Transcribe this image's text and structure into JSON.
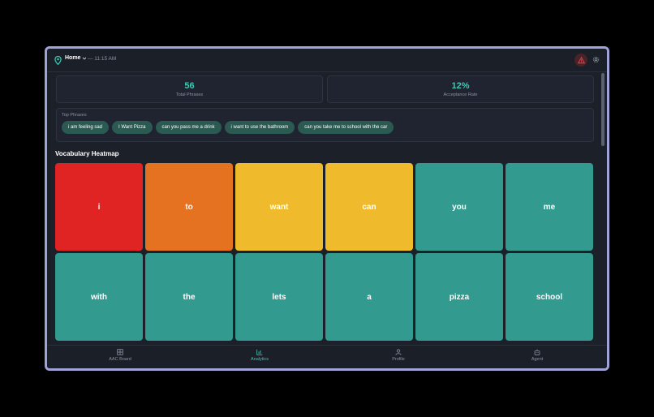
{
  "header": {
    "location": "Home",
    "time": "— 11:15 AM"
  },
  "stats": [
    {
      "value": "56",
      "label": "Total Phrases"
    },
    {
      "value": "12%",
      "label": "Acceptance Rate"
    }
  ],
  "top_phrases": {
    "title": "Top Phrases",
    "items": [
      "i am feeling sad",
      "I Want Pizza",
      "can you pass me a drink",
      "i want to use the bathroom",
      "can you take me to school with the car"
    ]
  },
  "heatmap": {
    "title": "Vocabulary Heatmap",
    "tiles": [
      {
        "word": "i",
        "color": "#e02424"
      },
      {
        "word": "to",
        "color": "#e57220"
      },
      {
        "word": "want",
        "color": "#efbb2c"
      },
      {
        "word": "can",
        "color": "#efbb2c"
      },
      {
        "word": "you",
        "color": "#339a8f"
      },
      {
        "word": "me",
        "color": "#339a8f"
      },
      {
        "word": "with",
        "color": "#339a8f"
      },
      {
        "word": "the",
        "color": "#339a8f"
      },
      {
        "word": "lets",
        "color": "#339a8f"
      },
      {
        "word": "a",
        "color": "#339a8f"
      },
      {
        "word": "pizza",
        "color": "#339a8f"
      },
      {
        "word": "school",
        "color": "#339a8f"
      }
    ]
  },
  "nav": {
    "items": [
      {
        "label": "AAC Board",
        "icon": "grid-icon"
      },
      {
        "label": "Analytics",
        "icon": "chart-icon",
        "active": true
      },
      {
        "label": "Profile",
        "icon": "user-icon"
      },
      {
        "label": "Agent",
        "icon": "robot-icon"
      }
    ]
  },
  "colors": {
    "accent": "#3ec9b3",
    "background": "#1c2029",
    "alert": "#e04848"
  }
}
